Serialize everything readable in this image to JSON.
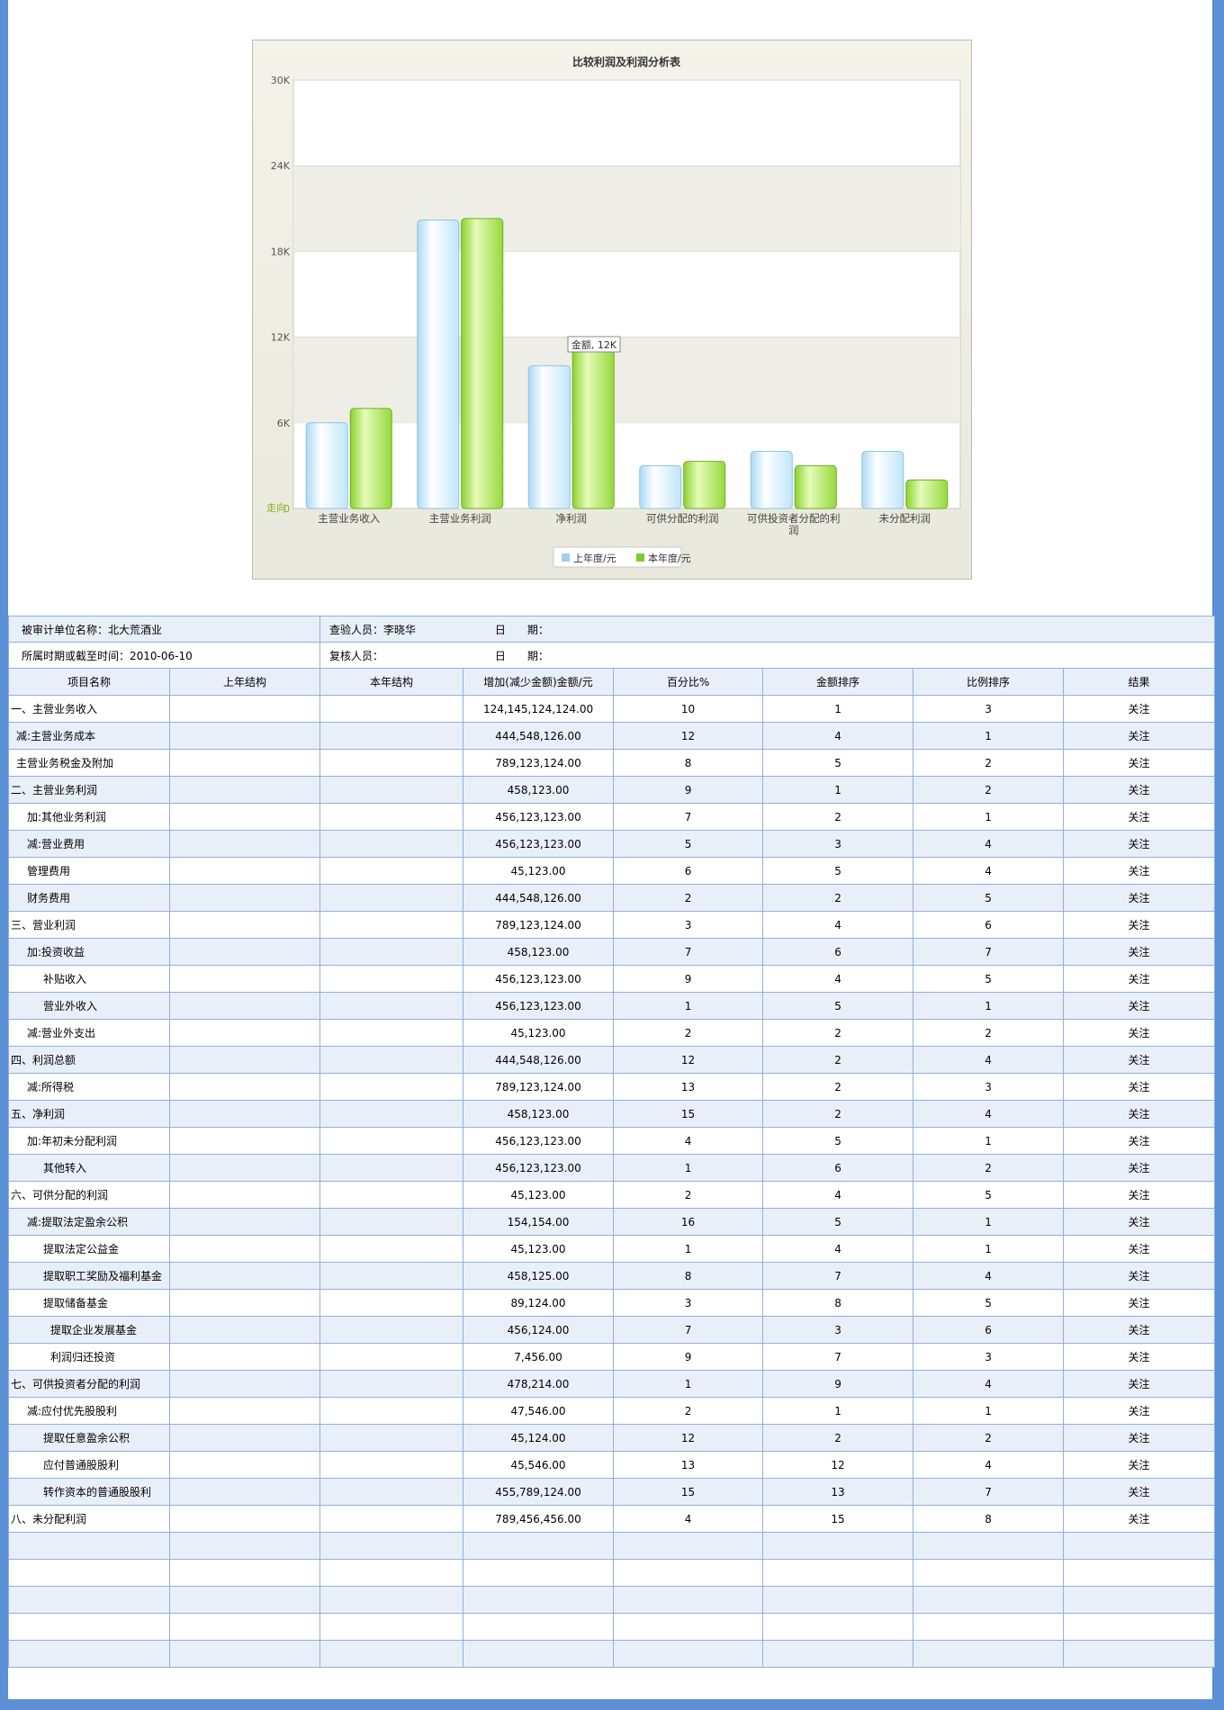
{
  "chart_data": {
    "type": "bar",
    "title": "比较利润及利润分析表",
    "categories": [
      "主营业务收入",
      "主营业务利润",
      "净利润",
      "可供分配的利润",
      "可供投资者分配的利润",
      "未分配利润"
    ],
    "series": [
      {
        "name": "上年度/元",
        "values": [
          6000,
          20200,
          10000,
          3000,
          4000,
          4000
        ],
        "color": "#bfe6fb"
      },
      {
        "name": "本年度/元",
        "values": [
          7000,
          20300,
          12000,
          3300,
          3000,
          2000
        ],
        "color": "#9bdc43"
      }
    ],
    "ylim": [
      0,
      30000
    ],
    "yticks": [
      "0",
      "6K",
      "12K",
      "18K",
      "24K",
      "30K"
    ],
    "tooltip": "金额, 12K",
    "corner_label": "走向",
    "legend_position": "bottom"
  },
  "info": {
    "row1": {
      "unit_label": "被审计单位名称：北大荒酒业",
      "checker_label": "查验人员：李晓华",
      "date_label": "日　　期："
    },
    "row2": {
      "period_label": "所属时期或截至时间：2010-06-10",
      "reviewer_label": "复核人员：",
      "date_label": "日　　期："
    }
  },
  "table": {
    "headers": [
      "项目名称",
      "上年结构",
      "本年结构",
      "增加(减少金额)金额/元",
      "百分比%",
      "金额排序",
      "比例排序",
      "结果"
    ],
    "rows": [
      {
        "name": "一、主营业务收入",
        "indent": 0,
        "amount": "124,145,124,124.00",
        "pct": "10",
        "amt_rank": "1",
        "ratio_rank": "3",
        "result": "关注"
      },
      {
        "name": "减:主营业务成本",
        "indent": 1,
        "amount": "444,548,126.00",
        "pct": "12",
        "amt_rank": "4",
        "ratio_rank": "1",
        "result": "关注"
      },
      {
        "name": "主营业务税金及附加",
        "indent": 1,
        "amount": "789,123,124.00",
        "pct": "8",
        "amt_rank": "5",
        "ratio_rank": "2",
        "result": "关注"
      },
      {
        "name": "二、主营业务利润",
        "indent": 0,
        "amount": "458,123.00",
        "pct": "9",
        "amt_rank": "1",
        "ratio_rank": "2",
        "result": "关注"
      },
      {
        "name": "加:其他业务利润",
        "indent": 2,
        "amount": "456,123,123.00",
        "pct": "7",
        "amt_rank": "2",
        "ratio_rank": "1",
        "result": "关注"
      },
      {
        "name": "减:营业费用",
        "indent": 2,
        "amount": "456,123,123.00",
        "pct": "5",
        "amt_rank": "3",
        "ratio_rank": "4",
        "result": "关注"
      },
      {
        "name": "管理费用",
        "indent": 2,
        "amount": "45,123.00",
        "pct": "6",
        "amt_rank": "5",
        "ratio_rank": "4",
        "result": "关注"
      },
      {
        "name": "财务费用",
        "indent": 2,
        "amount": "444,548,126.00",
        "pct": "2",
        "amt_rank": "2",
        "ratio_rank": "5",
        "result": "关注"
      },
      {
        "name": "三、营业利润",
        "indent": 0,
        "amount": "789,123,124.00",
        "pct": "3",
        "amt_rank": "4",
        "ratio_rank": "6",
        "result": "关注"
      },
      {
        "name": "加:投资收益",
        "indent": 2,
        "amount": "458,123.00",
        "pct": "7",
        "amt_rank": "6",
        "ratio_rank": "7",
        "result": "关注"
      },
      {
        "name": "补贴收入",
        "indent": 3,
        "amount": "456,123,123.00",
        "pct": "9",
        "amt_rank": "4",
        "ratio_rank": "5",
        "result": "关注"
      },
      {
        "name": "营业外收入",
        "indent": 3,
        "amount": "456,123,123.00",
        "pct": "1",
        "amt_rank": "5",
        "ratio_rank": "1",
        "result": "关注"
      },
      {
        "name": "减:营业外支出",
        "indent": 2,
        "amount": "45,123.00",
        "pct": "2",
        "amt_rank": "2",
        "ratio_rank": "2",
        "result": "关注"
      },
      {
        "name": "四、利润总额",
        "indent": 0,
        "amount": "444,548,126.00",
        "pct": "12",
        "amt_rank": "2",
        "ratio_rank": "4",
        "result": "关注"
      },
      {
        "name": "减:所得税",
        "indent": 2,
        "amount": "789,123,124.00",
        "pct": "13",
        "amt_rank": "2",
        "ratio_rank": "3",
        "result": "关注"
      },
      {
        "name": "五、净利润",
        "indent": 0,
        "amount": "458,123.00",
        "pct": "15",
        "amt_rank": "2",
        "ratio_rank": "4",
        "result": "关注"
      },
      {
        "name": "加:年初未分配利润",
        "indent": 2,
        "amount": "456,123,123.00",
        "pct": "4",
        "amt_rank": "5",
        "ratio_rank": "1",
        "result": "关注"
      },
      {
        "name": "其他转入",
        "indent": 3,
        "amount": "456,123,123.00",
        "pct": "1",
        "amt_rank": "6",
        "ratio_rank": "2",
        "result": "关注"
      },
      {
        "name": "六、可供分配的利润",
        "indent": 0,
        "amount": "45,123.00",
        "pct": "2",
        "amt_rank": "4",
        "ratio_rank": "5",
        "result": "关注"
      },
      {
        "name": "减:提取法定盈余公积",
        "indent": 2,
        "amount": "154,154.00",
        "pct": "16",
        "amt_rank": "5",
        "ratio_rank": "1",
        "result": "关注"
      },
      {
        "name": "提取法定公益金",
        "indent": 3,
        "amount": "45,123.00",
        "pct": "1",
        "amt_rank": "4",
        "ratio_rank": "1",
        "result": "关注"
      },
      {
        "name": "提取职工奖励及福利基金",
        "indent": 3,
        "amount": "458,125.00",
        "pct": "8",
        "amt_rank": "7",
        "ratio_rank": "4",
        "result": "关注"
      },
      {
        "name": "提取储备基金",
        "indent": 3,
        "amount": "89,124.00",
        "pct": "3",
        "amt_rank": "8",
        "ratio_rank": "5",
        "result": "关注"
      },
      {
        "name": "提取企业发展基金",
        "indent": 4,
        "amount": "456,124.00",
        "pct": "7",
        "amt_rank": "3",
        "ratio_rank": "6",
        "result": "关注"
      },
      {
        "name": "利润归还投资",
        "indent": 4,
        "amount": "7,456.00",
        "pct": "9",
        "amt_rank": "7",
        "ratio_rank": "3",
        "result": "关注"
      },
      {
        "name": "七、可供投资者分配的利润",
        "indent": 0,
        "amount": "478,214.00",
        "pct": "1",
        "amt_rank": "9",
        "ratio_rank": "4",
        "result": "关注"
      },
      {
        "name": "减:应付优先股股利",
        "indent": 2,
        "amount": "47,546.00",
        "pct": "2",
        "amt_rank": "1",
        "ratio_rank": "1",
        "result": "关注"
      },
      {
        "name": "提取任意盈余公积",
        "indent": 3,
        "amount": "45,124.00",
        "pct": "12",
        "amt_rank": "2",
        "ratio_rank": "2",
        "result": "关注"
      },
      {
        "name": "应付普通股股利",
        "indent": 3,
        "amount": "45,546.00",
        "pct": "13",
        "amt_rank": "12",
        "ratio_rank": "4",
        "result": "关注"
      },
      {
        "name": "转作资本的普通股股利",
        "indent": 3,
        "amount": "455,789,124.00",
        "pct": "15",
        "amt_rank": "13",
        "ratio_rank": "7",
        "result": "关注"
      },
      {
        "name": "八、未分配利润",
        "indent": 0,
        "amount": "789,456,456.00",
        "pct": "4",
        "amt_rank": "15",
        "ratio_rank": "8",
        "result": "关注"
      }
    ],
    "empty_rows": 5
  }
}
